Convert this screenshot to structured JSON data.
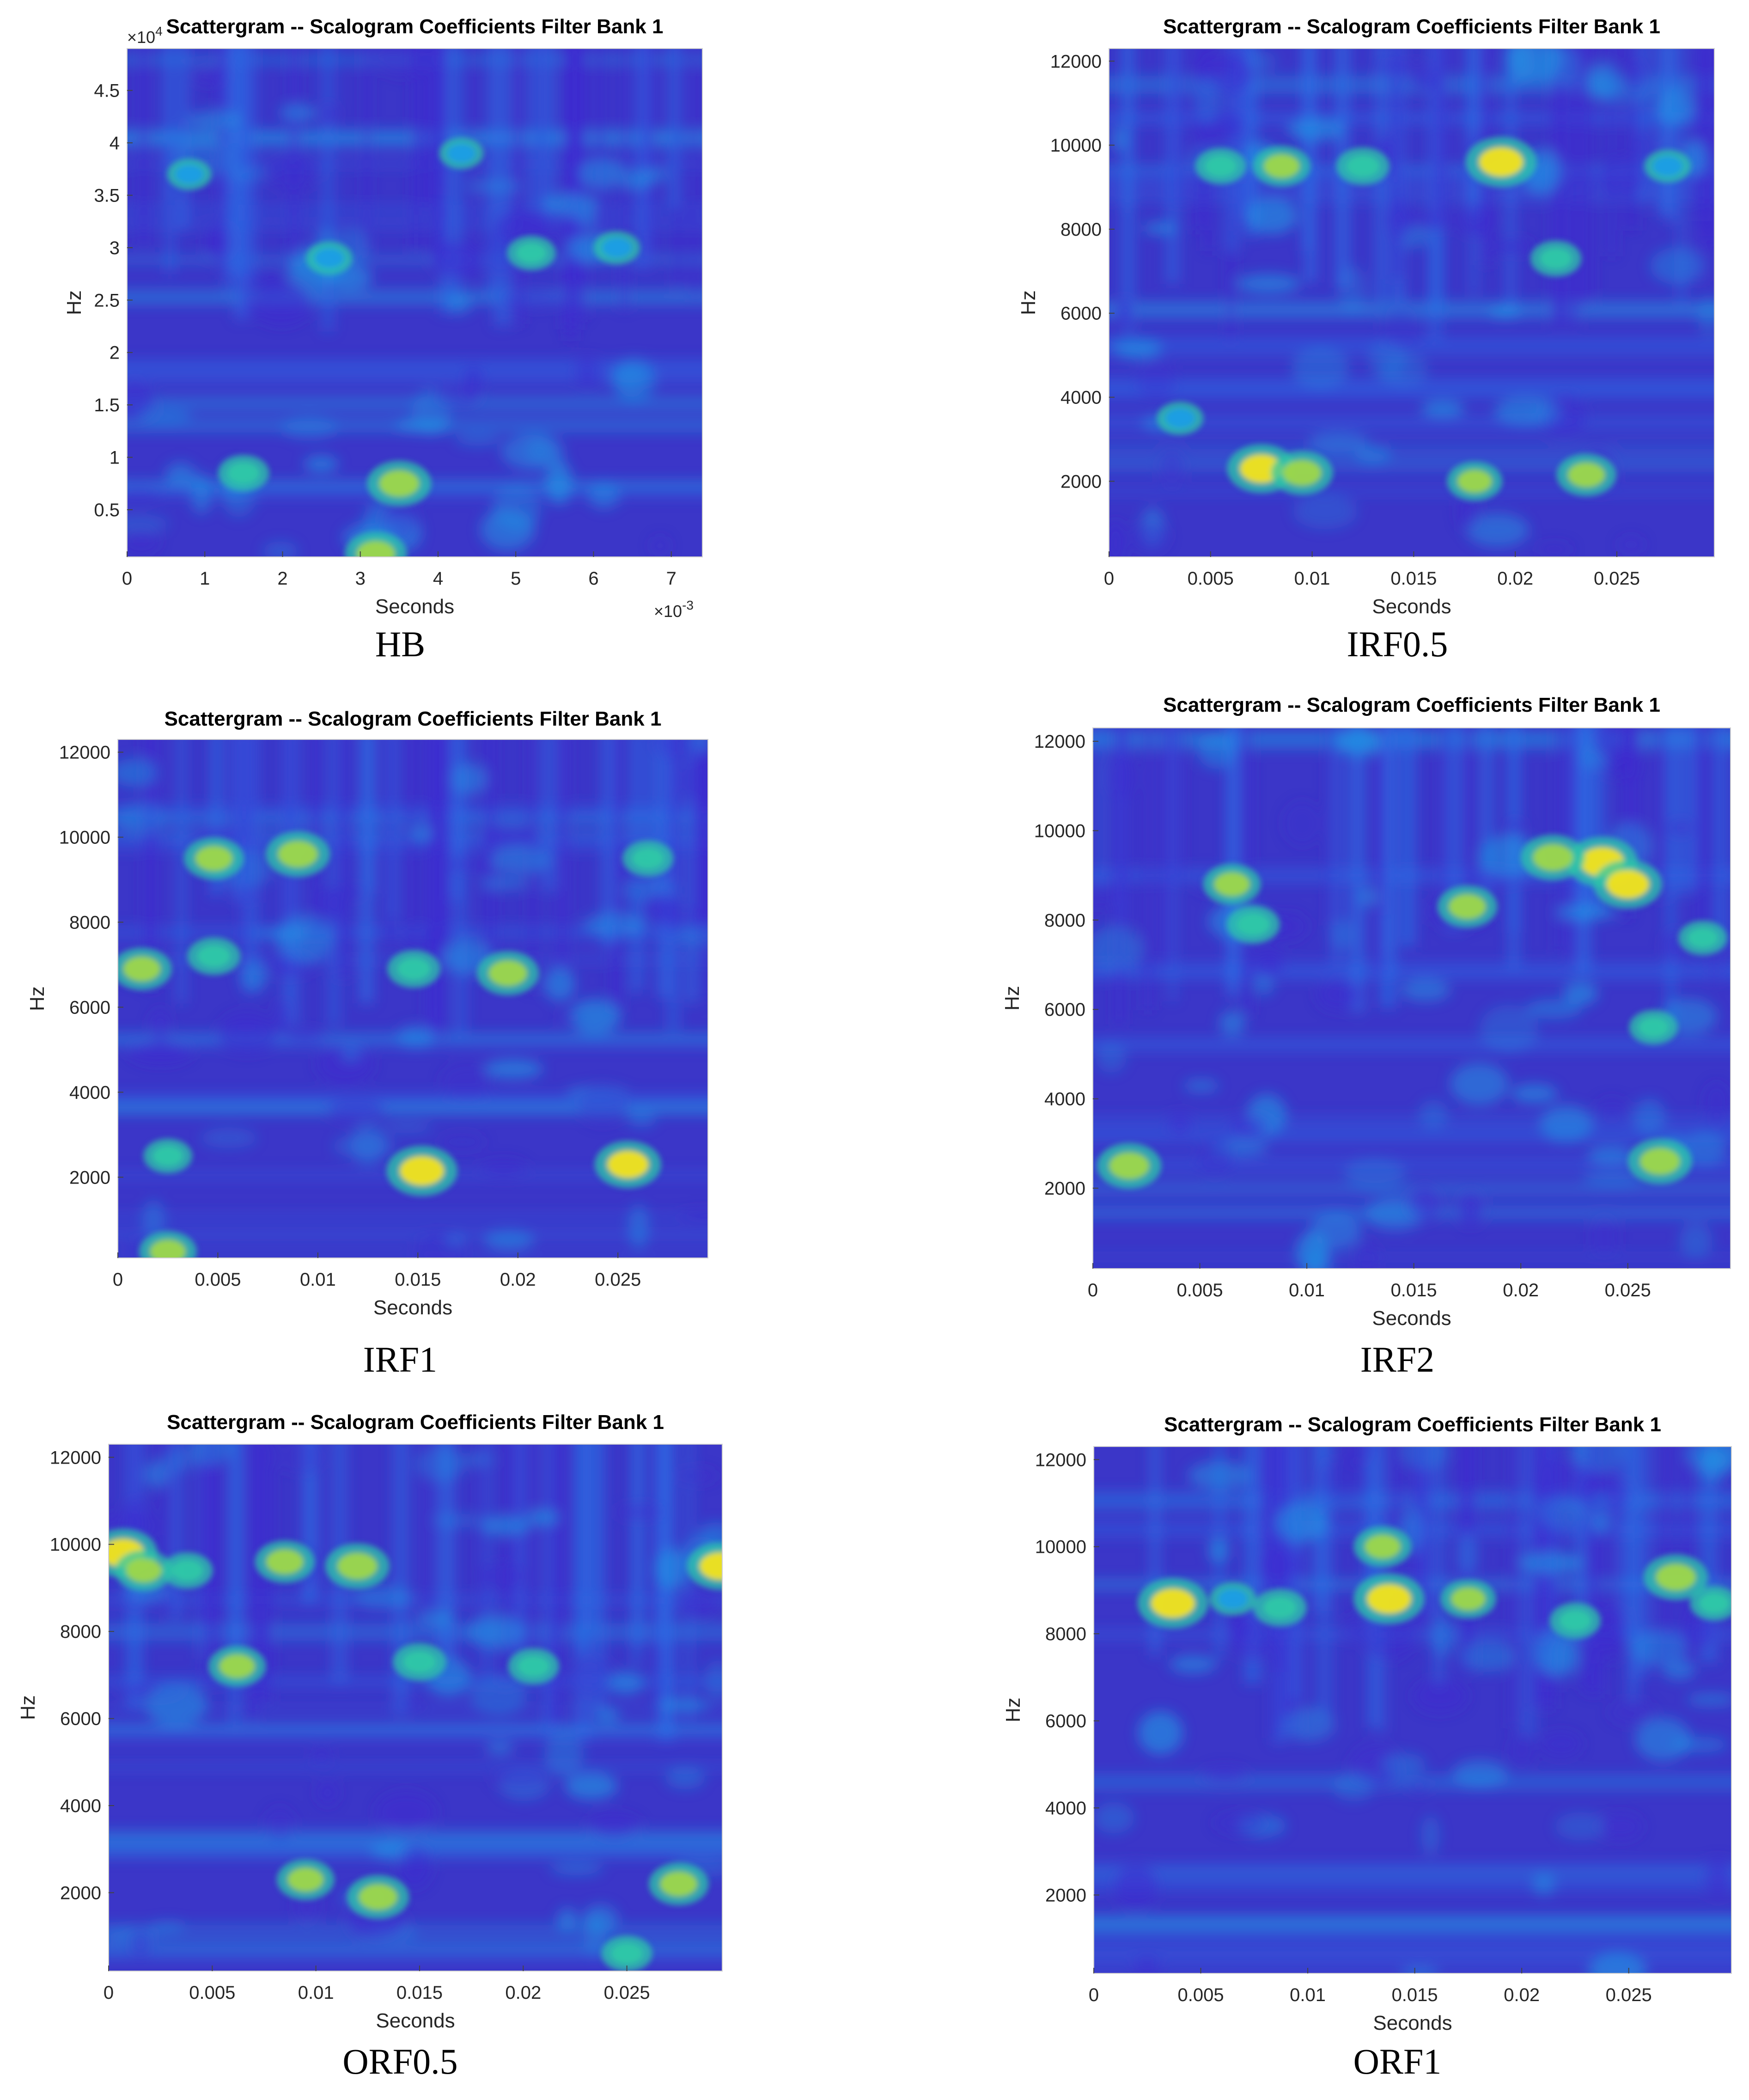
{
  "figure": {
    "colors": {
      "plot_bg": "#3b36c8",
      "low": "#3e2ad0",
      "mid": "#1f9de6",
      "high_green": "#2fc7a8",
      "peak": "#f4e21c"
    },
    "panels": [
      {
        "id": "hb",
        "caption": "HB",
        "chart_data": {
          "type": "heatmap",
          "title": "Scattergram -- Scalogram Coefficients Filter Bank 1",
          "xlabel": "Seconds",
          "ylabel": "Hz",
          "x_multiplier": "×10",
          "x_multiplier_exp": "-3",
          "y_multiplier": "×10",
          "y_multiplier_exp": "4",
          "xlim": [
            0,
            7.4
          ],
          "ylim": [
            0.05,
            4.9
          ],
          "xticks": [
            0,
            1,
            2,
            3,
            4,
            5,
            6,
            7
          ],
          "xtick_labels": [
            "0",
            "1",
            "2",
            "3",
            "4",
            "5",
            "6",
            "7"
          ],
          "yticks": [
            0.5,
            1,
            1.5,
            2,
            2.5,
            3,
            3.5,
            4,
            4.5
          ],
          "ytick_labels": [
            "0.5",
            "1",
            "1.5",
            "2",
            "2.5",
            "3",
            "3.5",
            "4",
            "4.5"
          ],
          "hotspots": [
            {
              "x": 3.5,
              "y": 0.75,
              "intensity": 0.85
            },
            {
              "x": 3.2,
              "y": 0.08,
              "intensity": 0.8
            },
            {
              "x": 1.5,
              "y": 0.85,
              "intensity": 0.55
            },
            {
              "x": 5.2,
              "y": 2.95,
              "intensity": 0.5
            },
            {
              "x": 2.6,
              "y": 2.9,
              "intensity": 0.45
            },
            {
              "x": 6.3,
              "y": 3.0,
              "intensity": 0.45
            },
            {
              "x": 0.8,
              "y": 3.7,
              "intensity": 0.4
            },
            {
              "x": 4.3,
              "y": 3.9,
              "intensity": 0.4
            }
          ]
        }
      },
      {
        "id": "irf05",
        "caption": "IRF0.5",
        "chart_data": {
          "type": "heatmap",
          "title": "Scattergram -- Scalogram Coefficients Filter Bank 1",
          "xlabel": "Seconds",
          "ylabel": "Hz",
          "xlim": [
            0,
            0.0298
          ],
          "ylim": [
            200,
            12300
          ],
          "xticks": [
            0,
            0.005,
            0.01,
            0.015,
            0.02,
            0.025
          ],
          "xtick_labels": [
            "0",
            "0.005",
            "0.01",
            "0.015",
            "0.02",
            "0.025"
          ],
          "yticks": [
            2000,
            4000,
            6000,
            8000,
            10000,
            12000
          ],
          "ytick_labels": [
            "2000",
            "4000",
            "6000",
            "8000",
            "10000",
            "12000"
          ],
          "hotspots": [
            {
              "x": 0.0193,
              "y": 9600,
              "intensity": 1.0
            },
            {
              "x": 0.0075,
              "y": 2300,
              "intensity": 0.95
            },
            {
              "x": 0.0095,
              "y": 2200,
              "intensity": 0.8
            },
            {
              "x": 0.0235,
              "y": 2150,
              "intensity": 0.75
            },
            {
              "x": 0.018,
              "y": 2000,
              "intensity": 0.65
            },
            {
              "x": 0.0085,
              "y": 9500,
              "intensity": 0.7
            },
            {
              "x": 0.0125,
              "y": 9500,
              "intensity": 0.6
            },
            {
              "x": 0.0055,
              "y": 9500,
              "intensity": 0.55
            },
            {
              "x": 0.022,
              "y": 7300,
              "intensity": 0.55
            },
            {
              "x": 0.0275,
              "y": 9500,
              "intensity": 0.45
            },
            {
              "x": 0.0035,
              "y": 3500,
              "intensity": 0.45
            }
          ]
        }
      },
      {
        "id": "irf1",
        "caption": "IRF1",
        "chart_data": {
          "type": "heatmap",
          "title": "Scattergram -- Scalogram Coefficients Filter Bank 1",
          "xlabel": "Seconds",
          "ylabel": "Hz",
          "xlim": [
            0,
            0.0295
          ],
          "ylim": [
            100,
            12300
          ],
          "xticks": [
            0,
            0.005,
            0.01,
            0.015,
            0.02,
            0.025
          ],
          "xtick_labels": [
            "0",
            "0.005",
            "0.01",
            "0.015",
            "0.02",
            "0.025"
          ],
          "yticks": [
            2000,
            4000,
            6000,
            8000,
            10000,
            12000
          ],
          "ytick_labels": [
            "2000",
            "4000",
            "6000",
            "8000",
            "10000",
            "12000"
          ],
          "hotspots": [
            {
              "x": 0.0152,
              "y": 2150,
              "intensity": 1.0
            },
            {
              "x": 0.0255,
              "y": 2300,
              "intensity": 0.9
            },
            {
              "x": 0.009,
              "y": 9600,
              "intensity": 0.85
            },
            {
              "x": 0.0048,
              "y": 9500,
              "intensity": 0.75
            },
            {
              "x": 0.0012,
              "y": 6900,
              "intensity": 0.75
            },
            {
              "x": 0.0195,
              "y": 6800,
              "intensity": 0.8
            },
            {
              "x": 0.0048,
              "y": 7200,
              "intensity": 0.6
            },
            {
              "x": 0.0148,
              "y": 6900,
              "intensity": 0.6
            },
            {
              "x": 0.0265,
              "y": 9500,
              "intensity": 0.55
            },
            {
              "x": 0.0025,
              "y": 250,
              "intensity": 0.7
            },
            {
              "x": 0.0025,
              "y": 2500,
              "intensity": 0.5
            }
          ]
        }
      },
      {
        "id": "irf2",
        "caption": "IRF2",
        "chart_data": {
          "type": "heatmap",
          "title": "Scattergram -- Scalogram Coefficients Filter Bank 1",
          "xlabel": "Seconds",
          "ylabel": "Hz",
          "xlim": [
            0,
            0.0298
          ],
          "ylim": [
            200,
            12300
          ],
          "xticks": [
            0,
            0.005,
            0.01,
            0.015,
            0.02,
            0.025
          ],
          "xtick_labels": [
            "0",
            "0.005",
            "0.01",
            "0.015",
            "0.02",
            "0.025"
          ],
          "yticks": [
            2000,
            4000,
            6000,
            8000,
            10000,
            12000
          ],
          "ytick_labels": [
            "2000",
            "4000",
            "6000",
            "8000",
            "10000",
            "12000"
          ],
          "hotspots": [
            {
              "x": 0.0238,
              "y": 9300,
              "intensity": 1.0
            },
            {
              "x": 0.025,
              "y": 8800,
              "intensity": 0.95
            },
            {
              "x": 0.0215,
              "y": 9400,
              "intensity": 0.85
            },
            {
              "x": 0.0175,
              "y": 8300,
              "intensity": 0.75
            },
            {
              "x": 0.0065,
              "y": 8800,
              "intensity": 0.7
            },
            {
              "x": 0.0075,
              "y": 7900,
              "intensity": 0.6
            },
            {
              "x": 0.0017,
              "y": 2500,
              "intensity": 0.85
            },
            {
              "x": 0.0265,
              "y": 2600,
              "intensity": 0.85
            },
            {
              "x": 0.0262,
              "y": 5600,
              "intensity": 0.5
            },
            {
              "x": 0.0285,
              "y": 7600,
              "intensity": 0.5
            }
          ]
        }
      },
      {
        "id": "orf05",
        "caption": "ORF0.5",
        "chart_data": {
          "type": "heatmap",
          "title": "Scattergram -- Scalogram Coefficients Filter Bank 1",
          "xlabel": "Seconds",
          "ylabel": "Hz",
          "xlim": [
            0,
            0.0296
          ],
          "ylim": [
            200,
            12300
          ],
          "xticks": [
            0,
            0.005,
            0.01,
            0.015,
            0.02,
            0.025
          ],
          "xtick_labels": [
            "0",
            "0.005",
            "0.01",
            "0.015",
            "0.02",
            "0.025"
          ],
          "yticks": [
            2000,
            4000,
            6000,
            8000,
            10000,
            12000
          ],
          "ytick_labels": [
            "2000",
            "4000",
            "6000",
            "8000",
            "10000",
            "12000"
          ],
          "hotspots": [
            {
              "x": 0.0007,
              "y": 9800,
              "intensity": 0.95
            },
            {
              "x": 0.0295,
              "y": 9500,
              "intensity": 0.9
            },
            {
              "x": 0.012,
              "y": 9500,
              "intensity": 0.85
            },
            {
              "x": 0.0085,
              "y": 9600,
              "intensity": 0.75
            },
            {
              "x": 0.0017,
              "y": 9400,
              "intensity": 0.7
            },
            {
              "x": 0.0038,
              "y": 9400,
              "intensity": 0.55
            },
            {
              "x": 0.0062,
              "y": 7200,
              "intensity": 0.7
            },
            {
              "x": 0.015,
              "y": 7300,
              "intensity": 0.6
            },
            {
              "x": 0.0205,
              "y": 7200,
              "intensity": 0.55
            },
            {
              "x": 0.013,
              "y": 1900,
              "intensity": 0.8
            },
            {
              "x": 0.0095,
              "y": 2300,
              "intensity": 0.7
            },
            {
              "x": 0.0275,
              "y": 2200,
              "intensity": 0.75
            },
            {
              "x": 0.025,
              "y": 600,
              "intensity": 0.55
            }
          ]
        }
      },
      {
        "id": "orf1",
        "caption": "ORF1",
        "chart_data": {
          "type": "heatmap",
          "title": "Scattergram -- Scalogram Coefficients Filter Bank 1",
          "xlabel": "Seconds",
          "ylabel": "Hz",
          "xlim": [
            0,
            0.0298
          ],
          "ylim": [
            200,
            12300
          ],
          "xticks": [
            0,
            0.005,
            0.01,
            0.015,
            0.02,
            0.025
          ],
          "xtick_labels": [
            "0",
            "0.005",
            "0.01",
            "0.015",
            "0.02",
            "0.025"
          ],
          "yticks": [
            2000,
            4000,
            6000,
            8000,
            10000,
            12000
          ],
          "ytick_labels": [
            "2000",
            "4000",
            "6000",
            "8000",
            "10000",
            "12000"
          ],
          "hotspots": [
            {
              "x": 0.0037,
              "y": 8700,
              "intensity": 1.0
            },
            {
              "x": 0.0138,
              "y": 8800,
              "intensity": 1.0
            },
            {
              "x": 0.0135,
              "y": 10000,
              "intensity": 0.7
            },
            {
              "x": 0.0272,
              "y": 9300,
              "intensity": 0.85
            },
            {
              "x": 0.0175,
              "y": 8800,
              "intensity": 0.65
            },
            {
              "x": 0.0087,
              "y": 8600,
              "intensity": 0.6
            },
            {
              "x": 0.0225,
              "y": 8300,
              "intensity": 0.55
            },
            {
              "x": 0.029,
              "y": 8700,
              "intensity": 0.5
            },
            {
              "x": 0.0065,
              "y": 8800,
              "intensity": 0.45
            }
          ]
        }
      }
    ]
  }
}
